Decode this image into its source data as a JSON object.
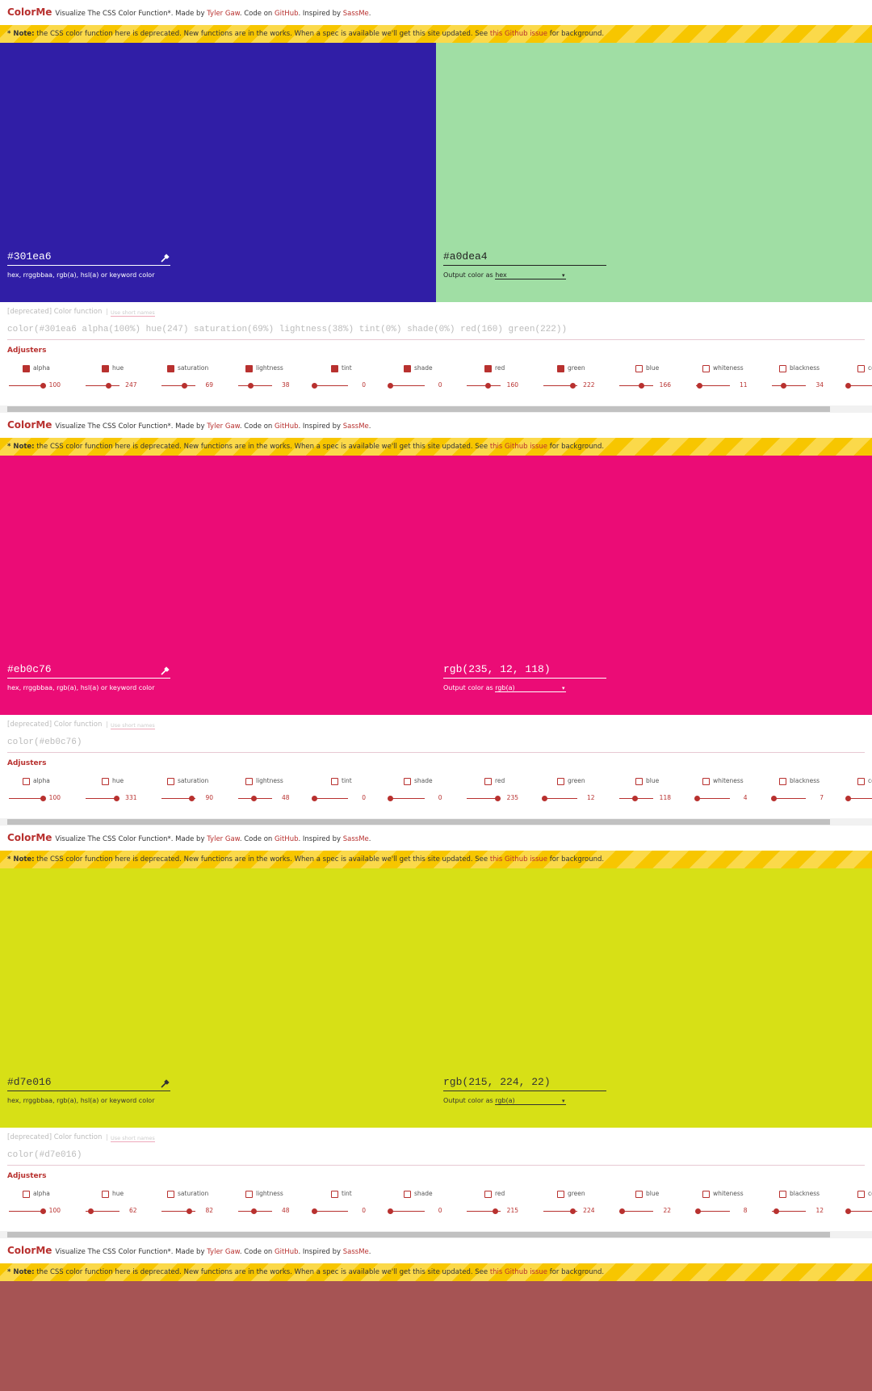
{
  "header": {
    "brand": "ColorMe",
    "intro": "Visualize The CSS Color Function*. Made by",
    "author": "Tyler Gaw",
    "code_on": ". Code on",
    "github": "GitHub",
    "inspired_by": ". Inspired by",
    "sassme": "SassMe",
    "end": "."
  },
  "note": {
    "label": "* Note:",
    "text": "the CSS color function here is deprecated. New functions are in the works. When a spec is available we'll get this site updated. See",
    "link": "this Github issue",
    "end": "for background."
  },
  "labels": {
    "input_hint": "hex, rrggbbaa, rgb(a), hsl(a) or keyword color",
    "output_as": "Output color as",
    "deprecated": "[deprecated] Color function",
    "short_names": "Use short names",
    "adjusters": "Adjusters"
  },
  "adjusters": [
    {
      "name": "alpha",
      "max": 100
    },
    {
      "name": "hue",
      "max": 360
    },
    {
      "name": "saturation",
      "max": 100
    },
    {
      "name": "lightness",
      "max": 100
    },
    {
      "name": "tint",
      "max": 100
    },
    {
      "name": "shade",
      "max": 100
    },
    {
      "name": "red",
      "max": 255
    },
    {
      "name": "green",
      "max": 255
    },
    {
      "name": "blue",
      "max": 255
    },
    {
      "name": "whiteness",
      "max": 100
    },
    {
      "name": "blackness",
      "max": 100
    },
    {
      "name": "contrast",
      "max": 100
    }
  ],
  "panels": [
    {
      "input": "#301ea6",
      "output": "#a0dea4",
      "output_format": "hex",
      "text_color": [
        "#ffffff",
        "#222222"
      ],
      "function": "color(#301ea6 alpha(100%) hue(247) saturation(69%) lightness(38%) tint(0%) shade(0%) red(160) green(222))",
      "checked": [
        true,
        true,
        true,
        true,
        true,
        true,
        true,
        true,
        false,
        false,
        false,
        false
      ],
      "values": [
        100,
        247,
        69,
        38,
        0,
        0,
        160,
        222,
        166,
        11,
        34
      ]
    },
    {
      "input": "#eb0c76",
      "output": "rgb(235, 12, 118)",
      "output_format": "rgb(a)",
      "text_color": [
        "#ffffff",
        "#ffffff"
      ],
      "function": "color(#eb0c76)",
      "checked": [
        false,
        false,
        false,
        false,
        false,
        false,
        false,
        false,
        false,
        false,
        false,
        false
      ],
      "values": [
        100,
        331,
        90,
        48,
        0,
        0,
        235,
        12,
        118,
        4,
        7
      ]
    },
    {
      "input": "#d7e016",
      "output": "rgb(215, 224, 22)",
      "output_format": "rgb(a)",
      "text_color": [
        "#333333",
        "#333333"
      ],
      "function": "color(#d7e016)",
      "checked": [
        false,
        false,
        false,
        false,
        false,
        false,
        false,
        false,
        false,
        false,
        false,
        false
      ],
      "values": [
        100,
        62,
        82,
        48,
        0,
        0,
        215,
        224,
        22,
        8,
        12
      ]
    }
  ],
  "partial_panel": {
    "color": "#a65454"
  }
}
